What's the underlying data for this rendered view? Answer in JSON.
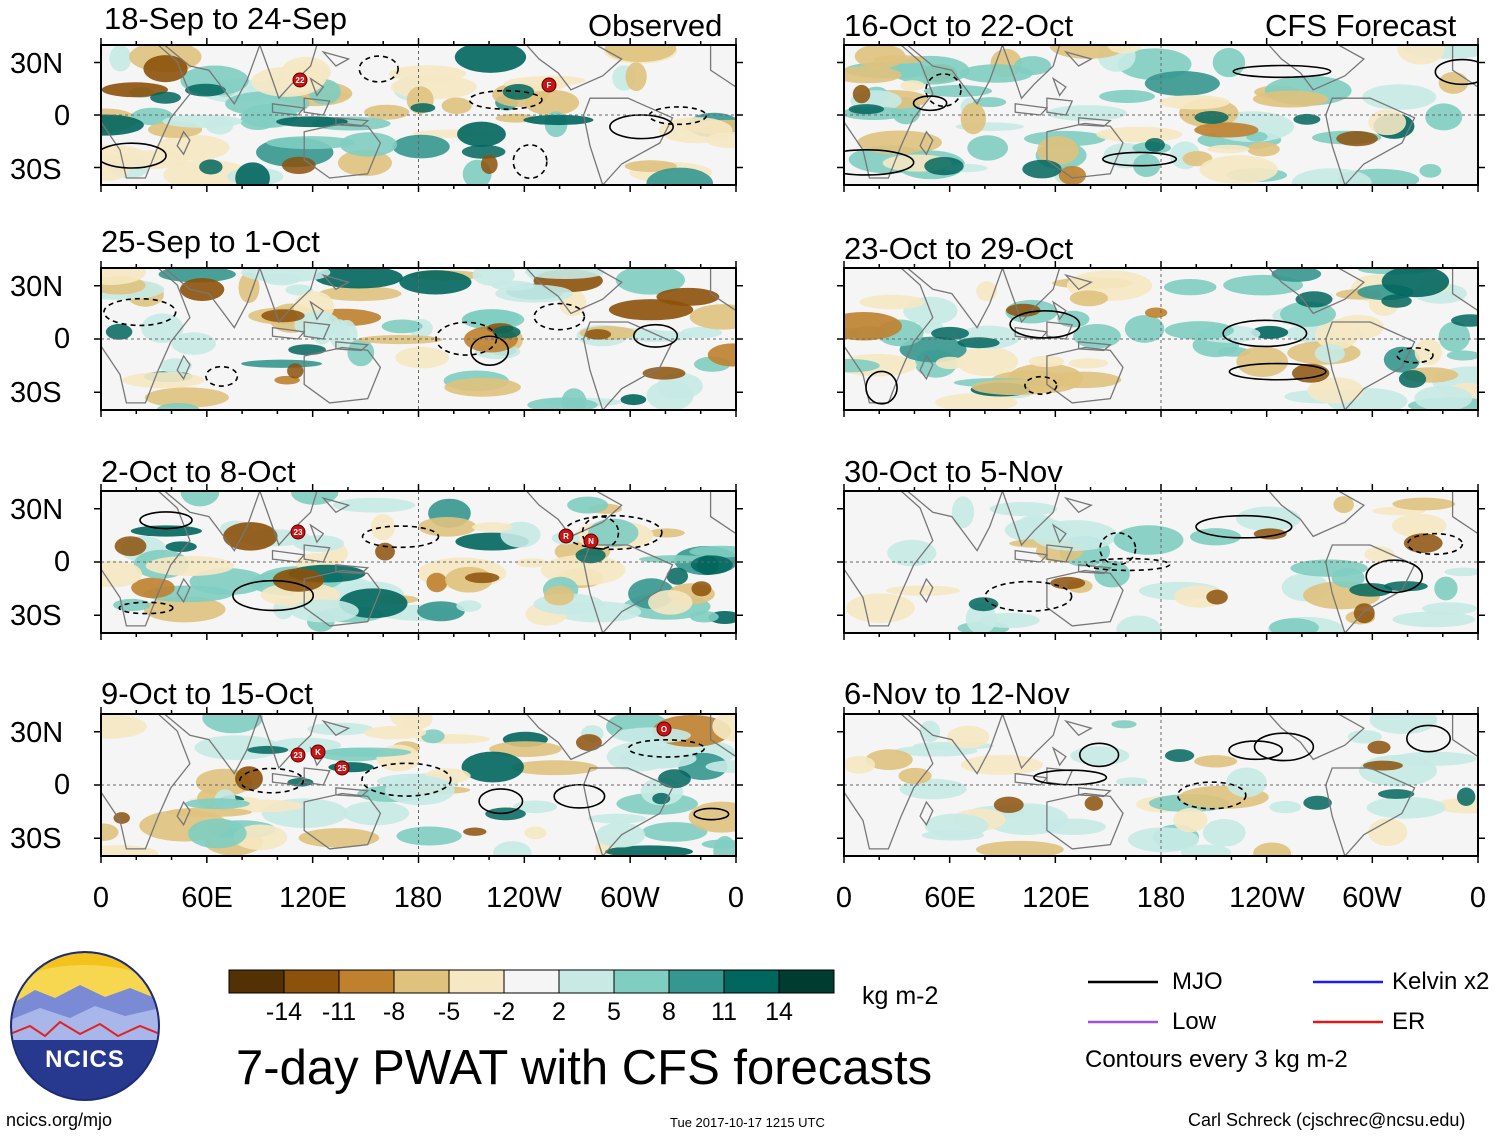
{
  "panels": {
    "observed_label": "Observed",
    "forecast_label": "CFS Forecast",
    "left": [
      "18-Sep to 24-Sep",
      "25-Sep to 1-Oct",
      "2-Oct to 8-Oct",
      "9-Oct to 15-Oct"
    ],
    "right": [
      "16-Oct to 22-Oct",
      "23-Oct to 29-Oct",
      "30-Oct to 5-Nov",
      "6-Nov to 12-Nov"
    ]
  },
  "axes": {
    "lat_labels": [
      "30N",
      "0",
      "30S"
    ],
    "lon_labels": [
      "0",
      "60E",
      "120E",
      "180",
      "120W",
      "60W",
      "0"
    ]
  },
  "storms": {
    "p1": [
      "22",
      "F"
    ],
    "p3": [
      "23",
      "R",
      "N"
    ],
    "p4": [
      "23",
      "K",
      "25",
      "O"
    ]
  },
  "colorbar": {
    "colors": [
      "#543005",
      "#8c510a",
      "#bf812d",
      "#dfc27d",
      "#f6e8c3",
      "#f5f5f5",
      "#c7eae5",
      "#80cdc1",
      "#35978f",
      "#01665e",
      "#003c30"
    ],
    "tick_labels": [
      "-14",
      "-11",
      "-8",
      "-5",
      "-2",
      "2",
      "5",
      "8",
      "11",
      "14"
    ],
    "units": "kg m-2"
  },
  "legend": {
    "mjo": "MJO",
    "kelvin": "Kelvin x2",
    "low": "Low",
    "er": "ER",
    "mjo_color": "#000000",
    "kelvin_color": "#1a1aff",
    "low_color": "#a050e0",
    "er_color": "#e01818",
    "contour_note": "Contours every 3 kg m-2"
  },
  "logo": {
    "text": "NCICS"
  },
  "title": "7-day PWAT with CFS forecasts",
  "footer": {
    "url": "ncics.org/mjo",
    "timestamp": "Tue 2017-10-17 1215 UTC",
    "author": "Carl Schreck (cjschrec@ncsu.edu)"
  }
}
